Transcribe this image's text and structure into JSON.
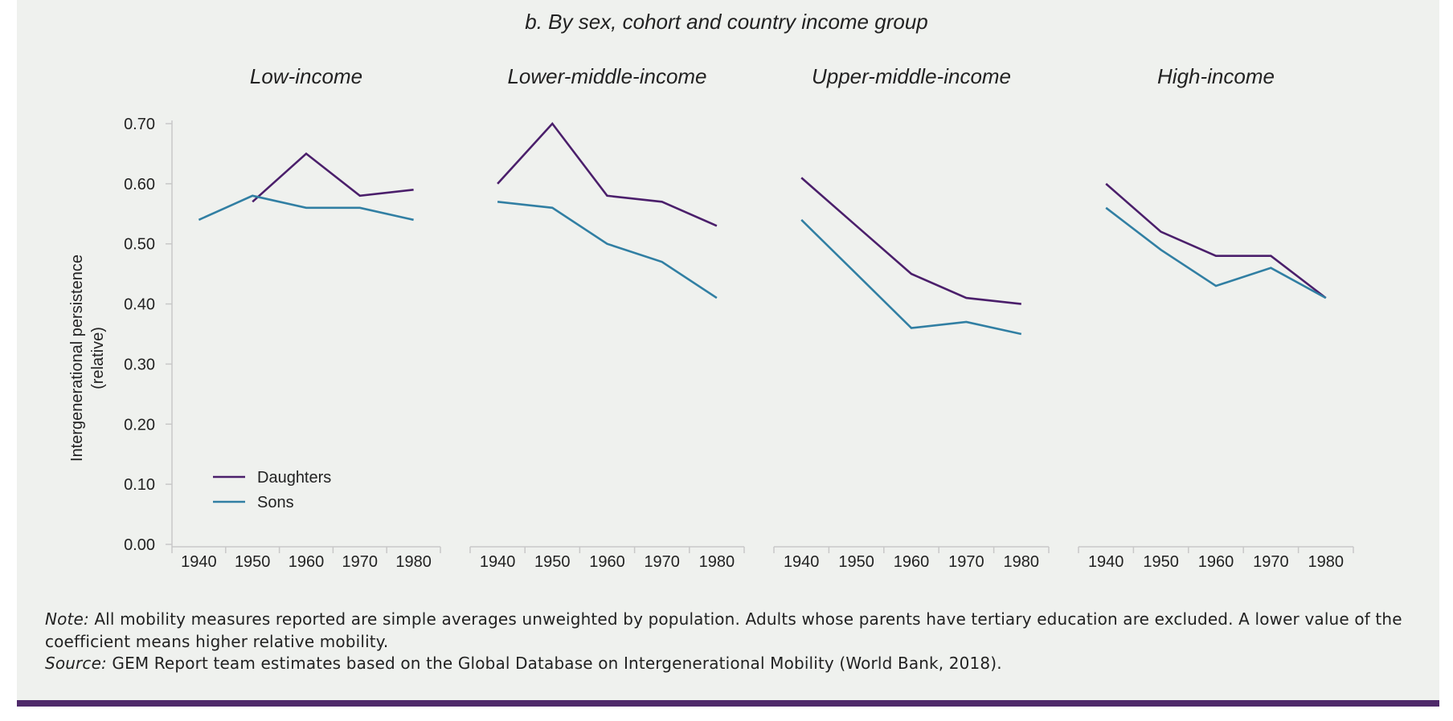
{
  "chart_data": {
    "type": "line",
    "title": "b. By sex, cohort and country income group",
    "ylabel": "Intergenerational persistence (relative)",
    "ylabel_lines": [
      "Intergenerational persistence",
      "(relative)"
    ],
    "xlabel": "",
    "ylim": [
      0,
      0.7
    ],
    "yticks": [
      "0.00",
      "0.10",
      "0.20",
      "0.30",
      "0.40",
      "0.50",
      "0.60",
      "0.70"
    ],
    "ytick_values": [
      0,
      0.1,
      0.2,
      0.3,
      0.4,
      0.5,
      0.6,
      0.7
    ],
    "x": [
      1940,
      1950,
      1960,
      1970,
      1980
    ],
    "xticks": [
      "1940",
      "1950",
      "1960",
      "1970",
      "1980"
    ],
    "grid": false,
    "legend": {
      "placement": "bottom-left of first panel",
      "entries": [
        {
          "name": "Daughters",
          "color": "#4b1f6b"
        },
        {
          "name": "Sons",
          "color": "#317fa3"
        }
      ]
    },
    "panels": [
      {
        "title": "Low-income",
        "series": [
          {
            "name": "Daughters",
            "values": [
              null,
              0.57,
              0.65,
              0.58,
              0.59
            ],
            "start_x": 1950
          },
          {
            "name": "Sons",
            "values": [
              0.54,
              0.58,
              0.56,
              0.56,
              0.54
            ]
          }
        ]
      },
      {
        "title": "Lower-middle-income",
        "series": [
          {
            "name": "Daughters",
            "values": [
              0.6,
              0.7,
              0.58,
              0.57,
              0.53
            ]
          },
          {
            "name": "Sons",
            "values": [
              0.57,
              0.56,
              0.5,
              0.47,
              0.41
            ]
          }
        ]
      },
      {
        "title": "Upper-middle-income",
        "series": [
          {
            "name": "Daughters",
            "values": [
              0.61,
              0.53,
              0.45,
              0.41,
              0.4
            ]
          },
          {
            "name": "Sons",
            "values": [
              0.54,
              0.45,
              0.36,
              0.37,
              0.35
            ]
          }
        ]
      },
      {
        "title": "High-income",
        "series": [
          {
            "name": "Daughters",
            "values": [
              0.6,
              0.52,
              0.48,
              0.48,
              0.41
            ]
          },
          {
            "name": "Sons",
            "values": [
              0.56,
              0.49,
              0.43,
              0.46,
              0.41
            ]
          }
        ]
      }
    ]
  },
  "notes": {
    "note_label": "Note:",
    "note_text": " All mobility measures reported are simple averages unweighted by population. Adults whose parents have tertiary education are excluded. A lower value of the coefficient means higher relative mobility.",
    "source_label": "Source:",
    "source_text": " GEM Report team estimates based on the Global Database on Intergenerational Mobility (World Bank, 2018)."
  },
  "colors": {
    "panel_background": "#eff1ee",
    "bottom_rule": "#4f2a6a",
    "daughters": "#4b1f6b",
    "sons": "#317fa3",
    "axis": "#c8c8c8"
  }
}
